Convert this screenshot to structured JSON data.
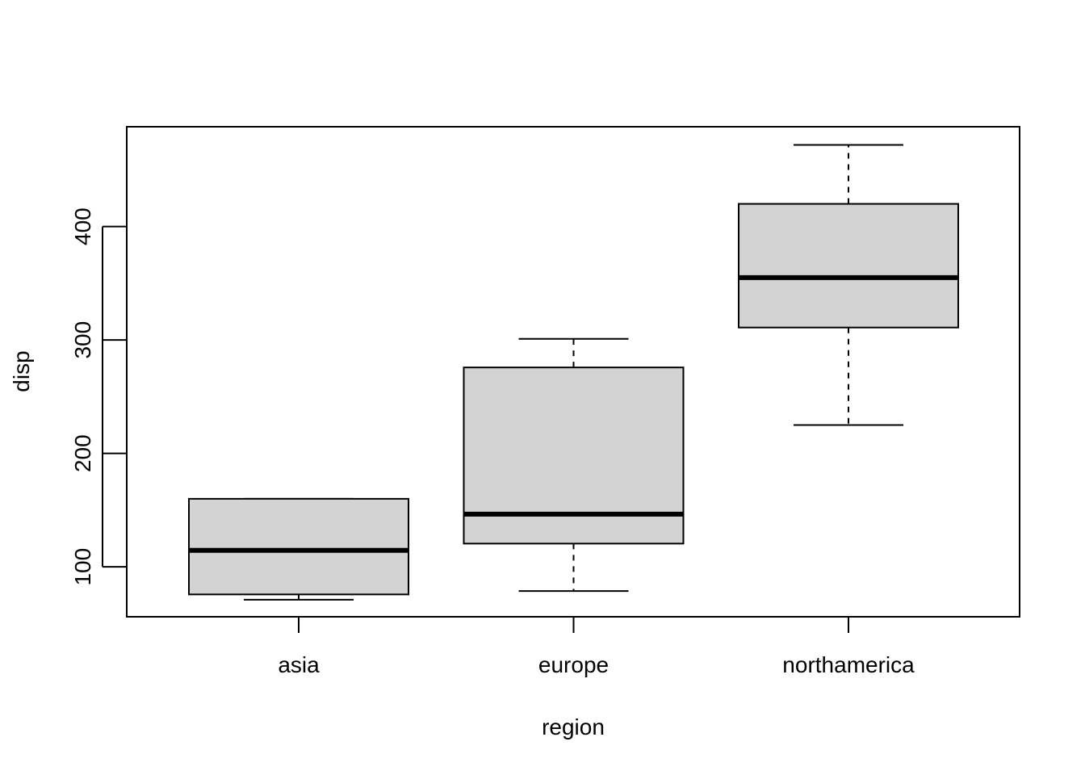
{
  "chart_data": {
    "type": "boxplot",
    "title": "",
    "xlabel": "region",
    "ylabel": "disp",
    "ylim": [
      56,
      488
    ],
    "yticks": [
      100,
      200,
      300,
      400
    ],
    "ytick_labels": [
      "100",
      "200",
      "300",
      "400"
    ],
    "grid": false,
    "legend": "none",
    "colors": {
      "box_fill": "#d3d3d3",
      "stroke": "#000000",
      "background": "#ffffff"
    },
    "categories": [
      "asia",
      "europe",
      "northamerica"
    ],
    "boxes": [
      {
        "category": "asia",
        "whisker_low": 71,
        "q1": 75.7,
        "median": 114.5,
        "q3": 160,
        "whisker_high": 160
      },
      {
        "category": "europe",
        "whisker_low": 78.7,
        "q1": 120.5,
        "median": 146.5,
        "q3": 275.8,
        "whisker_high": 301
      },
      {
        "category": "northamerica",
        "whisker_low": 225,
        "q1": 311,
        "median": 355,
        "q3": 420,
        "whisker_high": 472
      }
    ]
  }
}
